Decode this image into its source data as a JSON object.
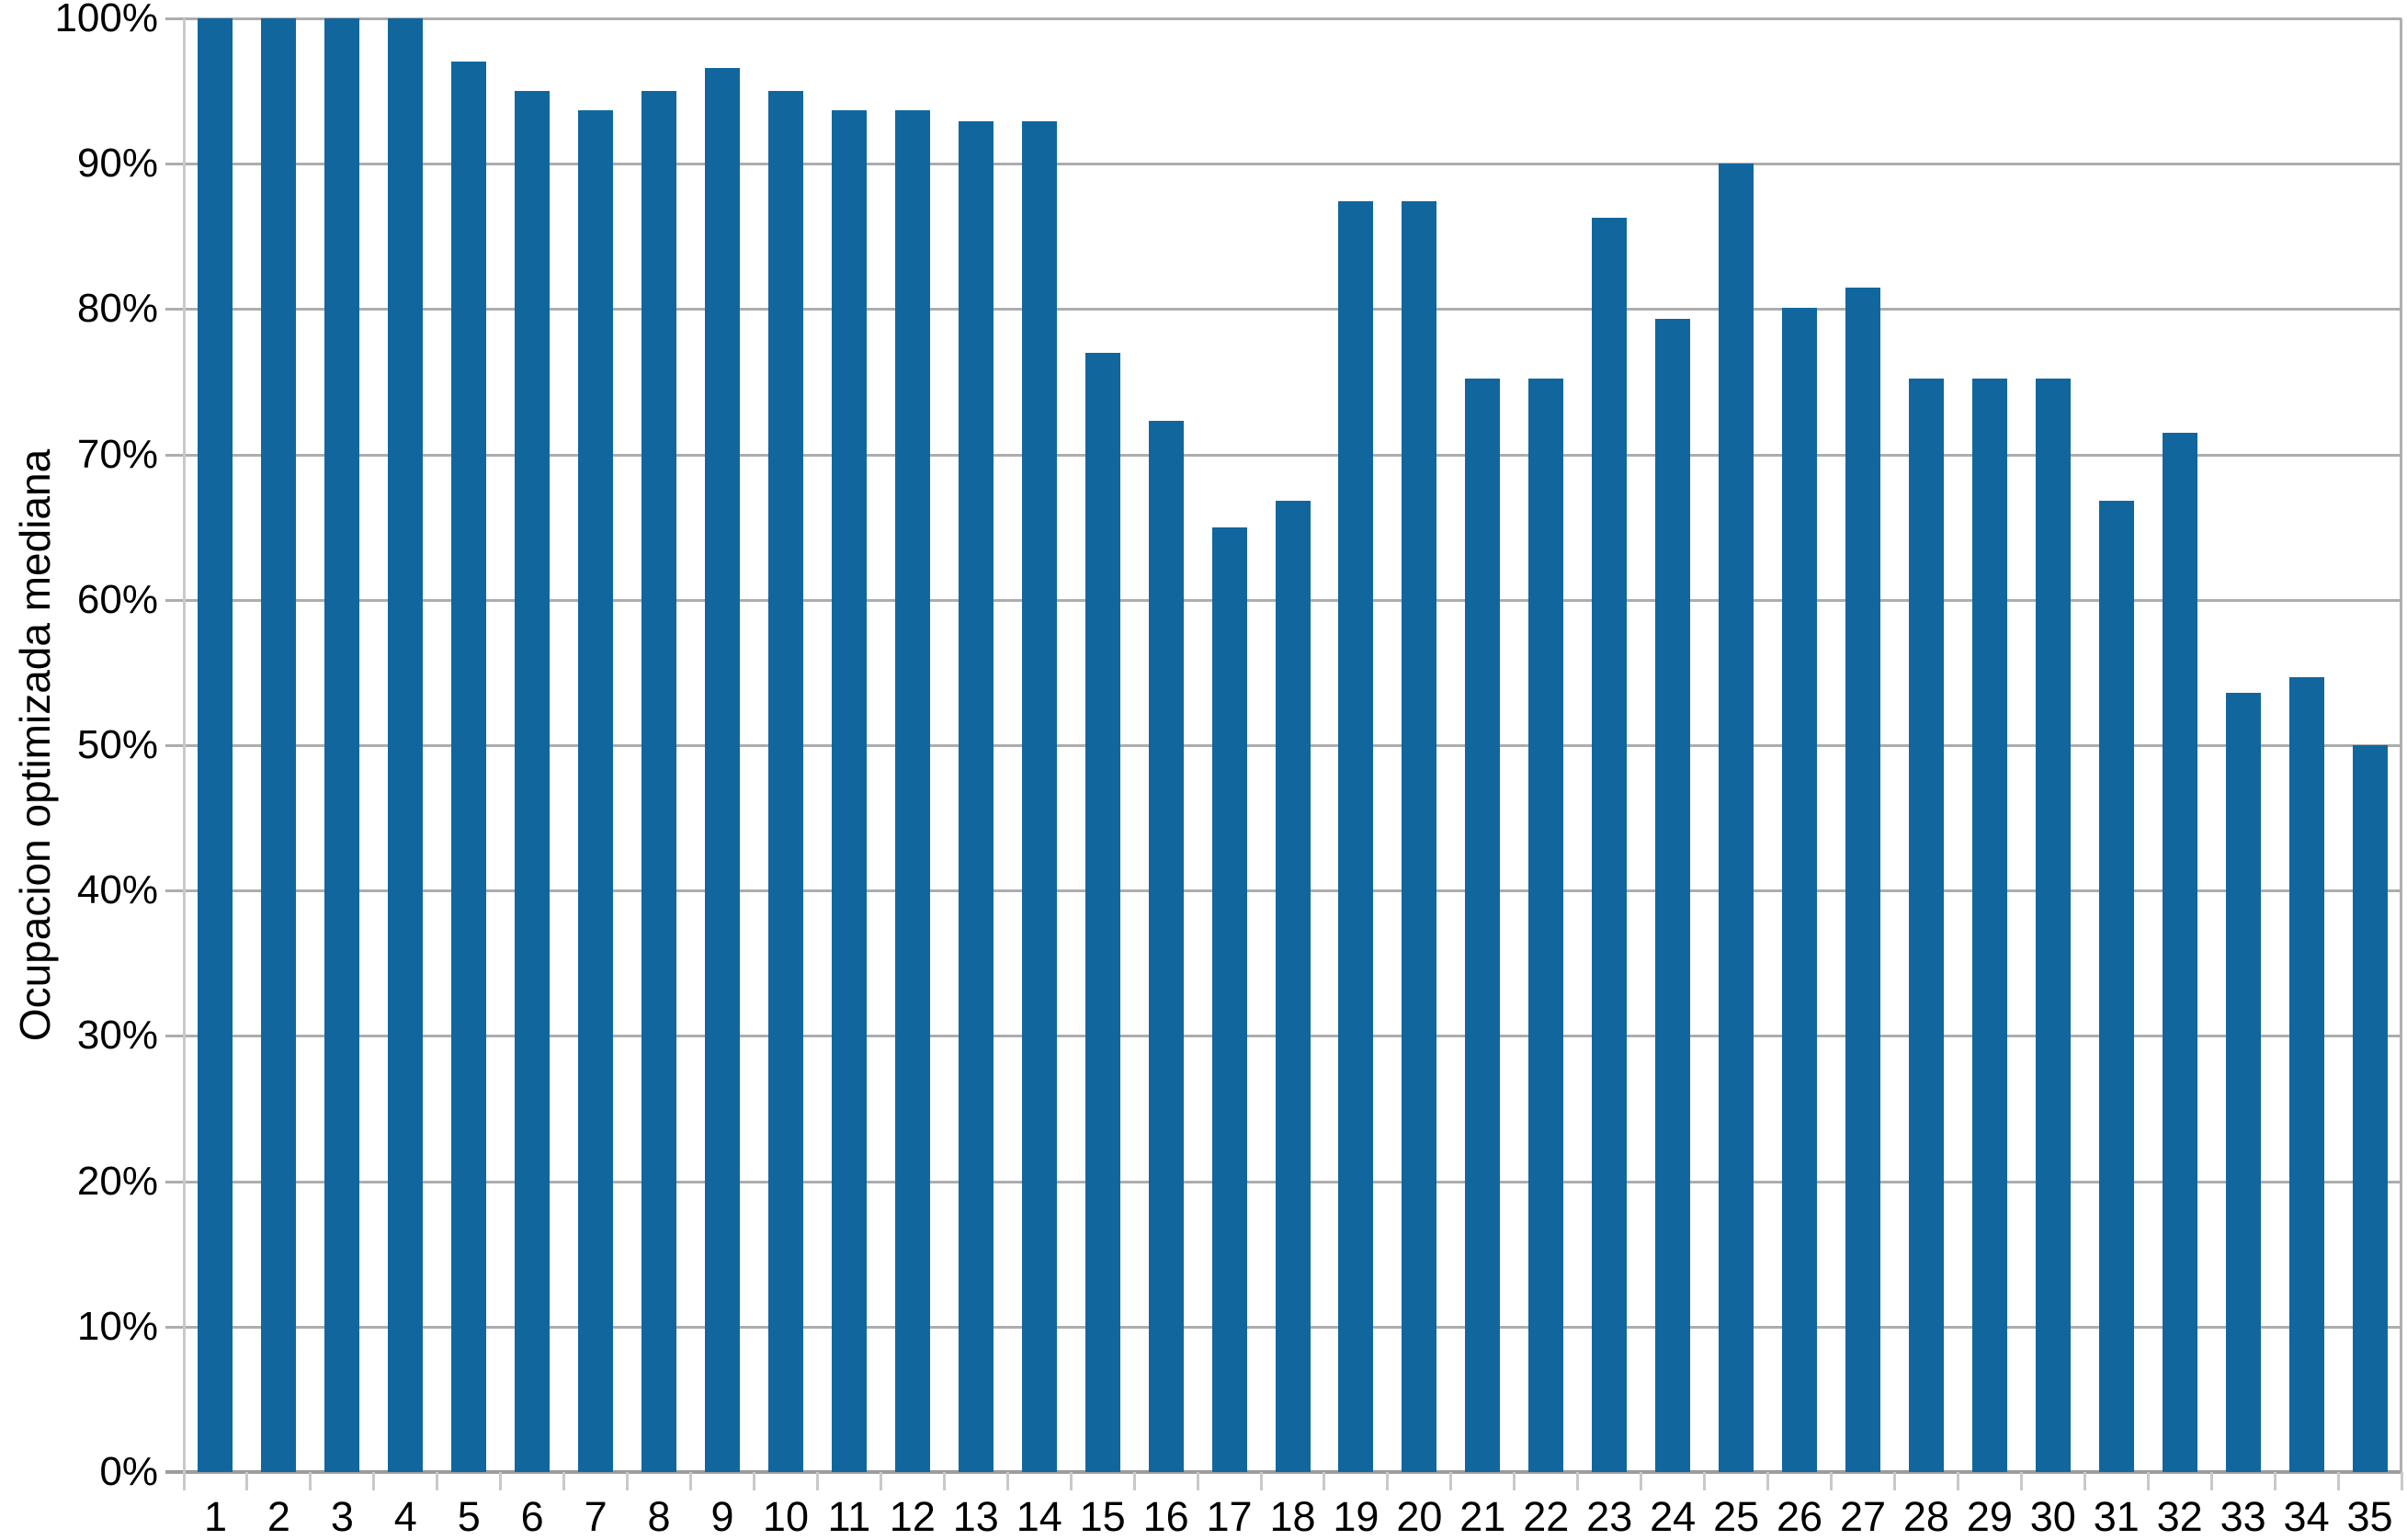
{
  "chart_data": {
    "type": "bar",
    "title": "",
    "xlabel": "",
    "ylabel": "Ocupacion optimizada mediana",
    "categories": [
      "1",
      "2",
      "3",
      "4",
      "5",
      "6",
      "7",
      "8",
      "9",
      "10",
      "11",
      "12",
      "13",
      "14",
      "15",
      "16",
      "17",
      "18",
      "19",
      "20",
      "21",
      "22",
      "23",
      "24",
      "25",
      "26",
      "27",
      "28",
      "29",
      "30",
      "31",
      "32",
      "33",
      "34",
      "35"
    ],
    "values": [
      100,
      100,
      100,
      100,
      97,
      95,
      93.7,
      95,
      96.6,
      95,
      93.7,
      93.7,
      92.9,
      92.9,
      77,
      72.3,
      65,
      66.8,
      87.4,
      87.4,
      75.2,
      75.2,
      86.3,
      79.3,
      90,
      80.1,
      81.5,
      75.2,
      75.2,
      75.2,
      66.8,
      71.5,
      53.6,
      54.7,
      50
    ],
    "ylim": [
      0,
      100
    ],
    "ytick_labels": [
      "0%",
      "10%",
      "20%",
      "30%",
      "40%",
      "50%",
      "60%",
      "70%",
      "80%",
      "90%",
      "100%"
    ],
    "grid": "horizontal-major",
    "legend": "none"
  },
  "colors": {
    "bar": "#11679d",
    "gridline": "#adadad",
    "axis_line": "#9d9d9d",
    "minor_tick": "#c9c9c9",
    "right_border": "#b0b0b0",
    "text": "#000000",
    "background": "#ffffff"
  }
}
